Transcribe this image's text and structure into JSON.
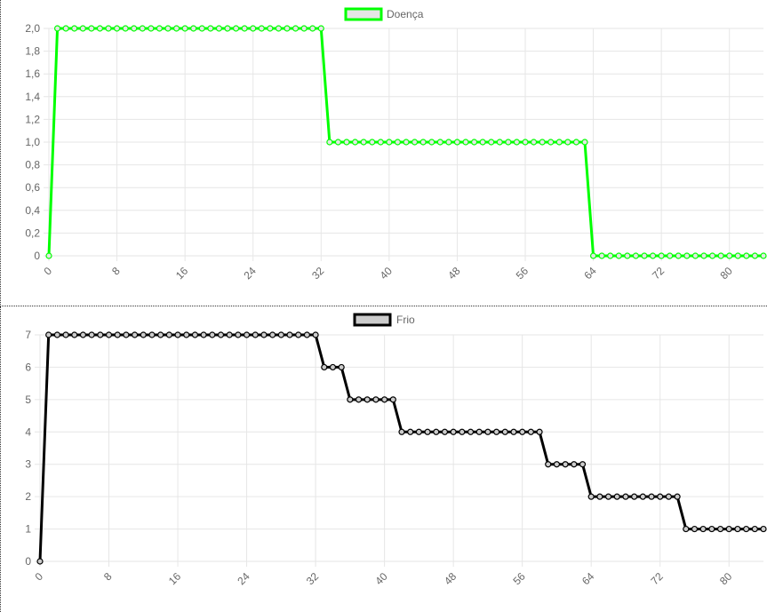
{
  "chart_data": [
    {
      "type": "line",
      "title": "",
      "xlabel": "",
      "ylabel": "",
      "legend_position": "top",
      "grid": true,
      "series": [
        {
          "name": "Doença",
          "color": "#00ff00",
          "fill_color": "#e6e6e6",
          "x": [
            0,
            1,
            2,
            3,
            4,
            5,
            6,
            7,
            8,
            9,
            10,
            11,
            12,
            13,
            14,
            15,
            16,
            17,
            18,
            19,
            20,
            21,
            22,
            23,
            24,
            25,
            26,
            27,
            28,
            29,
            30,
            31,
            32,
            33,
            34,
            35,
            36,
            37,
            38,
            39,
            40,
            41,
            42,
            43,
            44,
            45,
            46,
            47,
            48,
            49,
            50,
            51,
            52,
            53,
            54,
            55,
            56,
            57,
            58,
            59,
            60,
            61,
            62,
            63,
            64,
            65,
            66,
            67,
            68,
            69,
            70,
            71,
            72,
            73,
            74,
            75,
            76,
            77,
            78,
            79,
            80,
            81,
            82,
            83,
            84
          ],
          "values": [
            0,
            2,
            2,
            2,
            2,
            2,
            2,
            2,
            2,
            2,
            2,
            2,
            2,
            2,
            2,
            2,
            2,
            2,
            2,
            2,
            2,
            2,
            2,
            2,
            2,
            2,
            2,
            2,
            2,
            2,
            2,
            2,
            2,
            1,
            1,
            1,
            1,
            1,
            1,
            1,
            1,
            1,
            1,
            1,
            1,
            1,
            1,
            1,
            1,
            1,
            1,
            1,
            1,
            1,
            1,
            1,
            1,
            1,
            1,
            1,
            1,
            1,
            1,
            1,
            0,
            0,
            0,
            0,
            0,
            0,
            0,
            0,
            0,
            0,
            0,
            0,
            0,
            0,
            0,
            0,
            0,
            0,
            0,
            0,
            0
          ]
        }
      ],
      "x_ticks": [
        "0",
        "8",
        "16",
        "24",
        "32",
        "40",
        "48",
        "56",
        "64",
        "72",
        "80"
      ],
      "y_ticks": [
        "0",
        "0,2",
        "0,4",
        "0,6",
        "0,8",
        "1,0",
        "1,2",
        "1,4",
        "1,6",
        "1,8",
        "2,0"
      ],
      "xlim": [
        0,
        84
      ],
      "ylim": [
        0,
        2
      ]
    },
    {
      "type": "line",
      "title": "",
      "xlabel": "",
      "ylabel": "",
      "legend_position": "top",
      "grid": true,
      "series": [
        {
          "name": "Frio",
          "color": "#000000",
          "fill_color": "#cccccc",
          "x": [
            0,
            1,
            2,
            3,
            4,
            5,
            6,
            7,
            8,
            9,
            10,
            11,
            12,
            13,
            14,
            15,
            16,
            17,
            18,
            19,
            20,
            21,
            22,
            23,
            24,
            25,
            26,
            27,
            28,
            29,
            30,
            31,
            32,
            33,
            34,
            35,
            36,
            37,
            38,
            39,
            40,
            41,
            42,
            43,
            44,
            45,
            46,
            47,
            48,
            49,
            50,
            51,
            52,
            53,
            54,
            55,
            56,
            57,
            58,
            59,
            60,
            61,
            62,
            63,
            64,
            65,
            66,
            67,
            68,
            69,
            70,
            71,
            72,
            73,
            74,
            75,
            76,
            77,
            78,
            79,
            80,
            81,
            82,
            83,
            84
          ],
          "values": [
            0,
            7,
            7,
            7,
            7,
            7,
            7,
            7,
            7,
            7,
            7,
            7,
            7,
            7,
            7,
            7,
            7,
            7,
            7,
            7,
            7,
            7,
            7,
            7,
            7,
            7,
            7,
            7,
            7,
            7,
            7,
            7,
            7,
            6,
            6,
            6,
            5,
            5,
            5,
            5,
            5,
            5,
            4,
            4,
            4,
            4,
            4,
            4,
            4,
            4,
            4,
            4,
            4,
            4,
            4,
            4,
            4,
            4,
            4,
            3,
            3,
            3,
            3,
            3,
            2,
            2,
            2,
            2,
            2,
            2,
            2,
            2,
            2,
            2,
            2,
            1,
            1,
            1,
            1,
            1,
            1,
            1,
            1,
            1,
            1
          ]
        }
      ],
      "x_ticks": [
        "0",
        "8",
        "16",
        "24",
        "32",
        "40",
        "48",
        "56",
        "64",
        "72",
        "80"
      ],
      "y_ticks": [
        "0",
        "1",
        "2",
        "3",
        "4",
        "5",
        "6",
        "7"
      ],
      "xlim": [
        0,
        84
      ],
      "ylim": [
        0,
        7
      ]
    }
  ]
}
